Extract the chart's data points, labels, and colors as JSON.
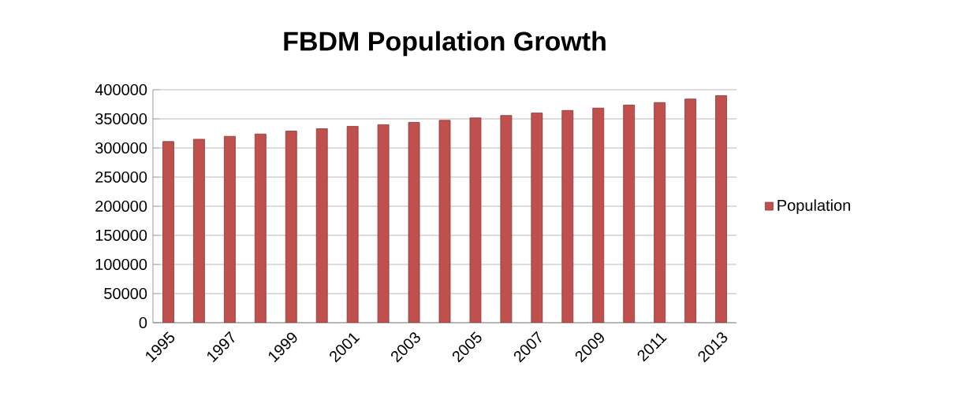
{
  "chart_data": {
    "type": "bar",
    "title": "FBDM Population Growth",
    "categories": [
      "1995",
      null,
      "1997",
      null,
      "1999",
      null,
      "2001",
      null,
      "2003",
      null,
      "2005",
      null,
      "2007",
      null,
      "2009",
      null,
      "2011",
      null,
      "2013"
    ],
    "series": [
      {
        "name": "Population",
        "color": "#c0504d",
        "values": [
          311000,
          315000,
          320000,
          324000,
          329000,
          333000,
          337000,
          340000,
          344000,
          347500,
          351600,
          355800,
          360000,
          364400,
          368500,
          373600,
          378000,
          384000,
          390000
        ]
      }
    ],
    "ylim": [
      0,
      400000
    ],
    "yticks": [
      0,
      50000,
      100000,
      150000,
      200000,
      250000,
      300000,
      350000,
      400000
    ],
    "grid": "y",
    "legend": "right"
  }
}
